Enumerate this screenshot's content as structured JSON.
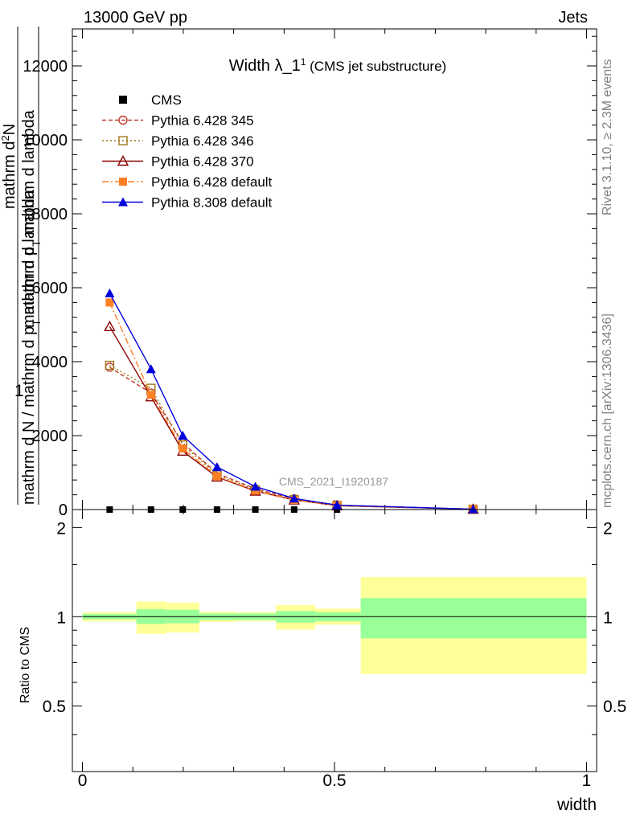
{
  "header": {
    "left": "13000 GeV pp",
    "right": "Jets"
  },
  "side": {
    "rivet": "Rivet 3.1.10, ≥ 2.3M events",
    "mcplots": "mcplots.cern.ch [arXiv:1306.3436]"
  },
  "watermark": "CMS_2021_I1920187",
  "title": {
    "main": "Width λ_1",
    "sup": "1",
    "sub": " (CMS jet substructure)"
  },
  "ylabel": {
    "one": "1",
    "dN": "mathrm d N / mathrm d p",
    "dN_sub": "T",
    "dN_rest": " mathrm d lambda",
    "d2N": "mathrm d",
    "d2N_sup": "2",
    "d2N_rest": "N",
    "d2den": "mathrm d p",
    "d2den_sub": "T",
    "d2den_rest": " mathrm d lambda"
  },
  "ratio_label": "Ratio to CMS",
  "xlabel": "width",
  "chart_data": [
    {
      "type": "line",
      "title": "Width λ_1^1 (CMS jet substructure)",
      "xlim": [
        -0.02,
        1.02
      ],
      "ylim": [
        0,
        13000
      ],
      "yticks": [
        0,
        2000,
        4000,
        6000,
        8000,
        10000,
        12000
      ],
      "x": [
        0.054,
        0.136,
        0.199,
        0.267,
        0.343,
        0.42,
        0.505,
        0.775
      ],
      "bin_edges": [
        0,
        0.107,
        0.166,
        0.232,
        0.302,
        0.384,
        0.462,
        0.552,
        1.0
      ],
      "legend": [
        "CMS",
        "Pythia 6.428 345",
        "Pythia 6.428 346",
        "Pythia 6.428 370",
        "Pythia 6.428 default",
        "Pythia 8.308 default"
      ],
      "series": [
        {
          "name": "CMS",
          "color": "#000000",
          "marker": "square",
          "values": [
            0,
            0,
            0,
            0,
            0,
            0,
            0,
            0
          ]
        },
        {
          "name": "Pythia 6.428 345",
          "color": "#c0392b",
          "marker": "circle-open",
          "dash": "5,3",
          "values": [
            3850,
            3150,
            1800,
            980,
            560,
            290,
            120,
            10
          ]
        },
        {
          "name": "Pythia 6.428 346",
          "color": "#a07818",
          "marker": "square-open",
          "dash": "2,3",
          "values": [
            3900,
            3280,
            1750,
            940,
            530,
            270,
            110,
            10
          ]
        },
        {
          "name": "Pythia 6.428 370",
          "color": "#8b0000",
          "marker": "triangle-open",
          "dash": "",
          "values": [
            4950,
            3050,
            1580,
            880,
            500,
            260,
            105,
            10
          ]
        },
        {
          "name": "Pythia 6.428 default",
          "color": "#ff7f24",
          "marker": "square",
          "dash": "8,3,2,3",
          "values": [
            5600,
            3100,
            1650,
            900,
            510,
            260,
            110,
            10
          ]
        },
        {
          "name": "Pythia 8.308 default",
          "color": "#0000dd",
          "marker": "triangle",
          "dash": "",
          "values": [
            5850,
            3800,
            2000,
            1150,
            620,
            300,
            120,
            10
          ]
        }
      ]
    },
    {
      "type": "area",
      "ylabel": "Ratio to CMS",
      "xlabel": "width",
      "xlim": [
        -0.02,
        1.02
      ],
      "ylim": [
        0.3,
        2.3
      ],
      "yticks": [
        0.5,
        1,
        2
      ],
      "xticks": [
        0,
        0.5,
        1
      ],
      "xtick_labels": [
        "0",
        "0.5",
        "1"
      ],
      "ytick_labels": [
        "0.5",
        "1",
        "2"
      ],
      "bins": [
        {
          "x0": 0.0,
          "x1": 0.107,
          "stat": [
            0.98,
            1.02
          ],
          "total": [
            0.965,
            1.035
          ]
        },
        {
          "x0": 0.107,
          "x1": 0.166,
          "stat": [
            0.945,
            1.06
          ],
          "total": [
            0.875,
            1.125
          ]
        },
        {
          "x0": 0.166,
          "x1": 0.232,
          "stat": [
            0.95,
            1.055
          ],
          "total": [
            0.885,
            1.115
          ]
        },
        {
          "x0": 0.232,
          "x1": 0.302,
          "stat": [
            0.975,
            1.025
          ],
          "total": [
            0.96,
            1.04
          ]
        },
        {
          "x0": 0.302,
          "x1": 0.384,
          "stat": [
            0.975,
            1.025
          ],
          "total": [
            0.965,
            1.035
          ]
        },
        {
          "x0": 0.384,
          "x1": 0.462,
          "stat": [
            0.955,
            1.045
          ],
          "total": [
            0.905,
            1.095
          ]
        },
        {
          "x0": 0.462,
          "x1": 0.552,
          "stat": [
            0.965,
            1.035
          ],
          "total": [
            0.94,
            1.065
          ]
        },
        {
          "x0": 0.552,
          "x1": 1.0,
          "stat": [
            0.845,
            1.155
          ],
          "total": [
            0.64,
            1.36
          ]
        }
      ],
      "reference": 1
    }
  ]
}
